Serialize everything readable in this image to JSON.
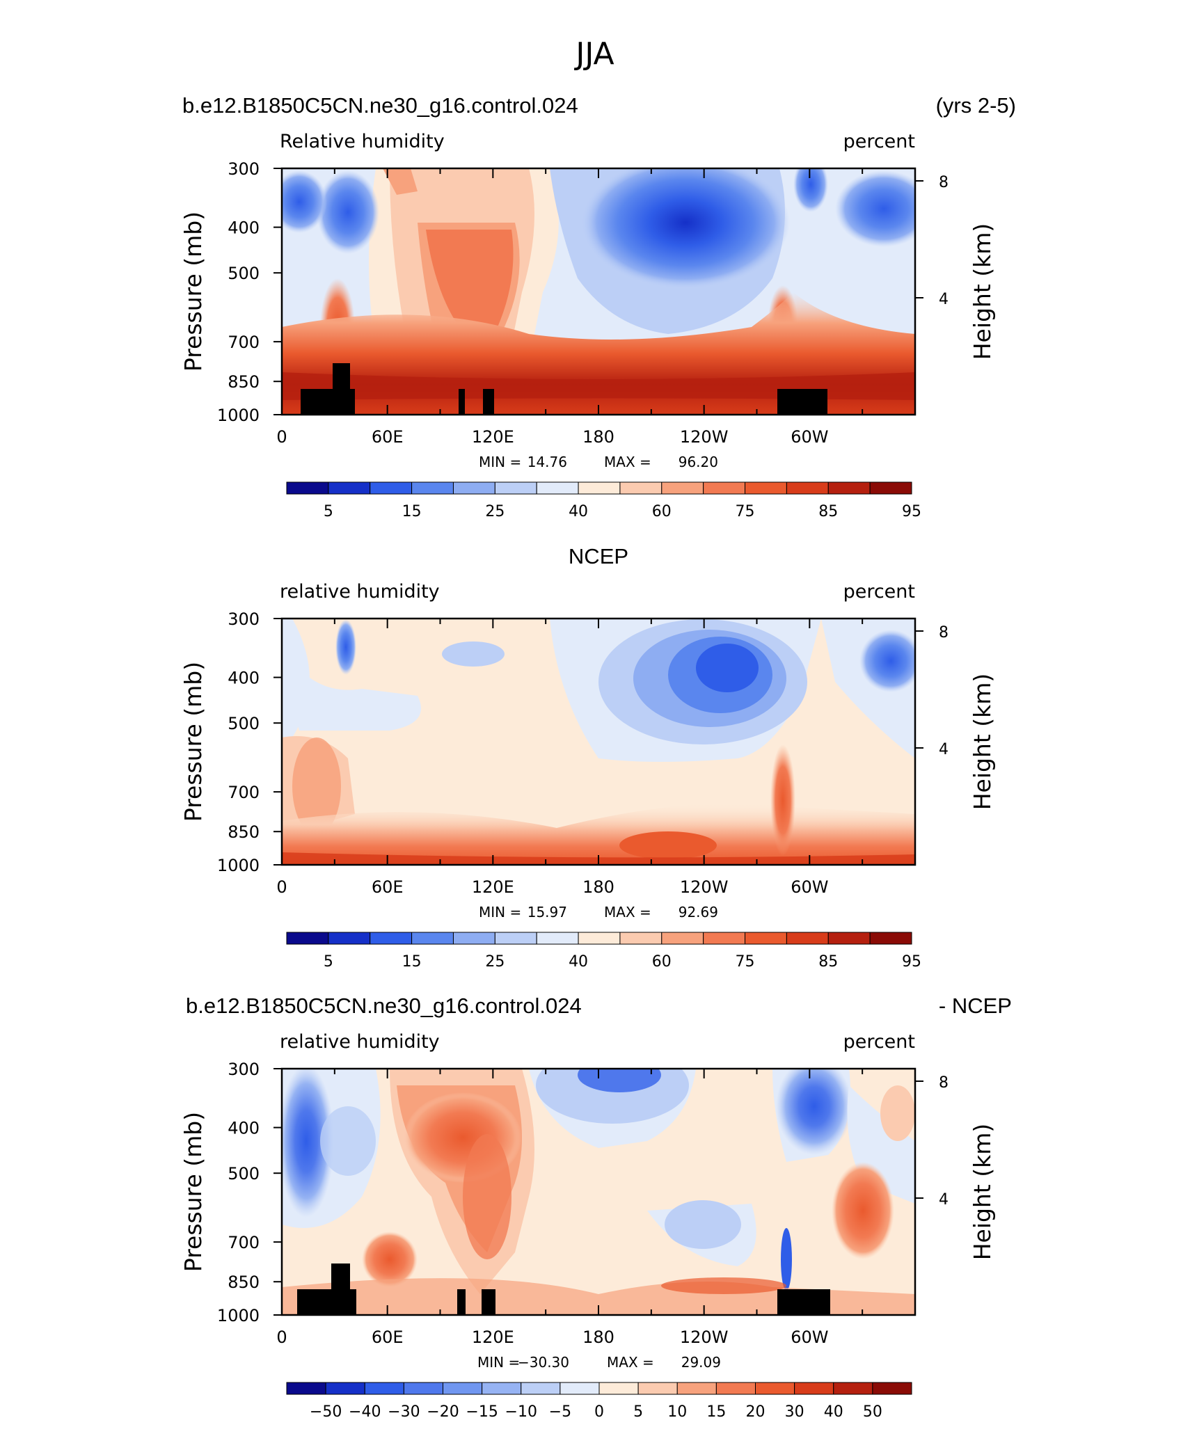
{
  "figure": {
    "season": "JJA",
    "case_name": "b.e12.B1850C5CN.ne30_g16.control.024",
    "years": "(yrs 2-5)",
    "obs_name": "NCEP",
    "diff_suffix": "- NCEP"
  },
  "chart_data": [
    {
      "type": "heatmap",
      "title": "b.e12.B1850C5CN.ne30_g16.control.024",
      "title_right": "(yrs 2-5)",
      "label_left": "Relative humidity",
      "label_right": "percent",
      "xlabel": "",
      "ylabel": "Pressure (mb)",
      "ylabel_right": "Height (km)",
      "x_ticks": [
        "0",
        "60E",
        "120E",
        "180",
        "120W",
        "60W"
      ],
      "y_ticks": [
        "300",
        "400",
        "500",
        "700",
        "850",
        "1000"
      ],
      "y_ticks_right": [
        "8",
        "4"
      ],
      "ylim": [
        1000,
        300
      ],
      "min_label": "MIN =",
      "min_value": "14.76",
      "max_label": "MAX =",
      "max_value": "96.20",
      "colorbar_labels": [
        "5",
        "15",
        "25",
        "40",
        "60",
        "75",
        "85",
        "95"
      ],
      "colorbar_colors": [
        "#0a0a8c",
        "#1530c8",
        "#2f5de8",
        "#5a86ee",
        "#8eadf2",
        "#bccff6",
        "#e2ebfa",
        "#fdebd9",
        "#fbcbb0",
        "#f7a27d",
        "#f27a52",
        "#ea5a2e",
        "#d83c1a",
        "#b5200f",
        "#8a0b06"
      ]
    },
    {
      "type": "heatmap",
      "title": "NCEP",
      "label_left": "relative humidity",
      "label_right": "percent",
      "xlabel": "",
      "ylabel": "Pressure (mb)",
      "ylabel_right": "Height (km)",
      "x_ticks": [
        "0",
        "60E",
        "120E",
        "180",
        "120W",
        "60W"
      ],
      "y_ticks": [
        "300",
        "400",
        "500",
        "700",
        "850",
        "1000"
      ],
      "y_ticks_right": [
        "8",
        "4"
      ],
      "ylim": [
        1000,
        300
      ],
      "min_label": "MIN =",
      "min_value": "15.97",
      "max_label": "MAX =",
      "max_value": "92.69",
      "colorbar_labels": [
        "5",
        "15",
        "25",
        "40",
        "60",
        "75",
        "85",
        "95"
      ],
      "colorbar_colors": [
        "#0a0a8c",
        "#1530c8",
        "#2f5de8",
        "#5a86ee",
        "#8eadf2",
        "#bccff6",
        "#e2ebfa",
        "#fdebd9",
        "#fbcbb0",
        "#f7a27d",
        "#f27a52",
        "#ea5a2e",
        "#d83c1a",
        "#b5200f",
        "#8a0b06"
      ]
    },
    {
      "type": "heatmap",
      "title": "b.e12.B1850C5CN.ne30_g16.control.024",
      "title_right": "- NCEP",
      "label_left": "relative humidity",
      "label_right": "percent",
      "xlabel": "",
      "ylabel": "Pressure (mb)",
      "ylabel_right": "Height (km)",
      "x_ticks": [
        "0",
        "60E",
        "120E",
        "180",
        "120W",
        "60W"
      ],
      "y_ticks": [
        "300",
        "400",
        "500",
        "700",
        "850",
        "1000"
      ],
      "y_ticks_right": [
        "8",
        "4"
      ],
      "ylim": [
        1000,
        300
      ],
      "min_label": "MIN =",
      "min_value": "−30.30",
      "max_label": "MAX =",
      "max_value": "29.09",
      "colorbar_labels": [
        "−50",
        "−40",
        "−30",
        "−20",
        "−15",
        "−10",
        "−5",
        "0",
        "5",
        "10",
        "15",
        "20",
        "30",
        "40",
        "50"
      ],
      "colorbar_colors": [
        "#0a0a8c",
        "#1530c8",
        "#2f5de8",
        "#4f78ec",
        "#7096f0",
        "#96b3f3",
        "#bccff6",
        "#e2ebfa",
        "#fdebd9",
        "#fbcbb0",
        "#f7a27d",
        "#f27a52",
        "#ea5a2e",
        "#d83c1a",
        "#b5200f",
        "#8a0b06"
      ]
    }
  ]
}
